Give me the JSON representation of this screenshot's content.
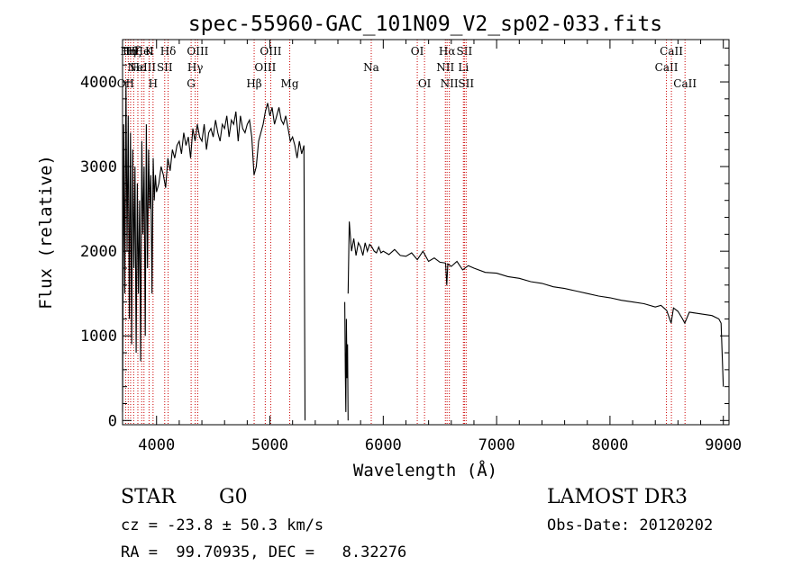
{
  "chart_data": {
    "type": "line",
    "title": "spec-55960-GAC_101N09_V2_sp02-033.fits",
    "xlabel": "Wavelength (Å)",
    "ylabel": "Flux (relative)",
    "xlim": [
      3700,
      9050
    ],
    "ylim": [
      -50,
      4500
    ],
    "xticks": [
      4000,
      5000,
      6000,
      7000,
      8000,
      9000
    ],
    "yticks": [
      0,
      1000,
      2000,
      3000,
      4000
    ],
    "series": [
      {
        "name": "flux",
        "color": "#000000",
        "segments": [
          {
            "x": [
              3700,
              3710,
              3720,
              3730,
              3740,
              3750,
              3760,
              3770,
              3780,
              3790,
              3800,
              3810,
              3820,
              3830,
              3840,
              3850,
              3860,
              3870,
              3880,
              3890,
              3900,
              3910,
              3920,
              3930,
              3940,
              3950,
              3960,
              3970,
              3980,
              3990,
              4000,
              4020,
              4040,
              4060,
              4080,
              4100,
              4120,
              4140,
              4160,
              4180,
              4200,
              4220,
              4240,
              4260,
              4280,
              4300,
              4320,
              4340,
              4360,
              4380,
              4400,
              4420,
              4440,
              4460,
              4480,
              4500,
              4520,
              4540,
              4560,
              4580,
              4600,
              4620,
              4640,
              4660,
              4680,
              4700,
              4720,
              4740,
              4760,
              4780,
              4800,
              4820,
              4840,
              4860,
              4880,
              4900,
              4920,
              4940,
              4960,
              4980,
              5000,
              5020,
              5040,
              5060,
              5080,
              5100,
              5120,
              5140,
              5160,
              5180,
              5200,
              5220,
              5240,
              5260,
              5280,
              5300,
              5310
            ],
            "y": [
              100,
              3500,
              1500,
              4000,
              2000,
              3600,
              1200,
              3400,
              900,
              3200,
              1800,
              3000,
              800,
              2800,
              1500,
              2600,
              700,
              3300,
              2200,
              3000,
              1000,
              3500,
              1800,
              3200,
              2500,
              2900,
              1500,
              3100,
              2600,
              2900,
              2700,
              2800,
              3000,
              2900,
              2750,
              3100,
              2950,
              3200,
              3100,
              3250,
              3300,
              3150,
              3400,
              3250,
              3350,
              3100,
              3450,
              3300,
              3500,
              3350,
              3300,
              3500,
              3200,
              3400,
              3450,
              3350,
              3550,
              3400,
              3300,
              3500,
              3450,
              3600,
              3350,
              3550,
              3500,
              3650,
              3300,
              3600,
              3450,
              3400,
              3500,
              3550,
              3350,
              2900,
              3000,
              3300,
              3400,
              3500,
              3650,
              3750,
              3600,
              3700,
              3500,
              3600,
              3700,
              3550,
              3500,
              3600,
              3450,
              3300,
              3350,
              3250,
              3100,
              3300,
              3150,
              3250,
              0
            ]
          },
          {
            "x": [
              5660,
              5665,
              5670,
              5675,
              5680,
              5685,
              5690
            ],
            "y": [
              1400,
              600,
              100,
              1200,
              500,
              900,
              0
            ]
          },
          {
            "x": [
              5690,
              5700,
              5720,
              5740,
              5760,
              5780,
              5800,
              5820,
              5840,
              5860,
              5880,
              5900,
              5920,
              5940,
              5960,
              5980,
              6000,
              6050,
              6100,
              6150,
              6200,
              6250,
              6300,
              6350,
              6400,
              6450,
              6500,
              6550,
              6560,
              6570,
              6600,
              6650,
              6700,
              6750,
              6800,
              6900,
              7000,
              7100,
              7200,
              7300,
              7400,
              7500,
              7600,
              7700,
              7800,
              7900,
              8000,
              8100,
              8200,
              8300,
              8400,
              8450,
              8500,
              8540,
              8560,
              8600,
              8640,
              8660,
              8700,
              8800,
              8900,
              8960,
              8980,
              9000
            ],
            "y": [
              1500,
              2350,
              2000,
              2150,
              1950,
              2100,
              2050,
              1950,
              2100,
              2000,
              2080,
              2050,
              2000,
              1980,
              2050,
              1980,
              2000,
              1960,
              2020,
              1950,
              1940,
              1980,
              1900,
              2000,
              1880,
              1920,
              1870,
              1860,
              1600,
              1850,
              1820,
              1880,
              1780,
              1830,
              1800,
              1750,
              1740,
              1700,
              1680,
              1640,
              1620,
              1580,
              1560,
              1530,
              1500,
              1470,
              1450,
              1420,
              1400,
              1380,
              1340,
              1360,
              1300,
              1150,
              1330,
              1290,
              1200,
              1150,
              1280,
              1260,
              1240,
              1200,
              1150,
              400
            ]
          }
        ]
      }
    ],
    "lines": [
      {
        "wl": 3727,
        "label": "OII",
        "row": 2
      },
      {
        "wl": 3750,
        "label": "Hη",
        "row": 0
      },
      {
        "wl": 3771,
        "label": "Hθ",
        "row": 0
      },
      {
        "wl": 3798,
        "label": "Hζ",
        "row": 0
      },
      {
        "wl": 3835,
        "label": "Hε",
        "row": 1
      },
      {
        "wl": 3869,
        "label": "NeIII",
        "row": 1
      },
      {
        "wl": 3889,
        "label": "HeI",
        "row": 0
      },
      {
        "wl": 3934,
        "label": "K",
        "row": 0
      },
      {
        "wl": 3969,
        "label": "H",
        "row": 2
      },
      {
        "wl": 4072,
        "label": "SII",
        "row": 1
      },
      {
        "wl": 4102,
        "label": "Hδ",
        "row": 0
      },
      {
        "wl": 4305,
        "label": "G",
        "row": 2
      },
      {
        "wl": 4341,
        "label": "Hγ",
        "row": 1
      },
      {
        "wl": 4363,
        "label": "OIII",
        "row": 0
      },
      {
        "wl": 4861,
        "label": "Hβ",
        "row": 2
      },
      {
        "wl": 4959,
        "label": "OIII",
        "row": 1
      },
      {
        "wl": 5007,
        "label": "OIII",
        "row": 0
      },
      {
        "wl": 5175,
        "label": "Mg",
        "row": 2
      },
      {
        "wl": 5894,
        "label": "Na",
        "row": 1
      },
      {
        "wl": 6300,
        "label": "OI",
        "row": 0
      },
      {
        "wl": 6364,
        "label": "OI",
        "row": 2
      },
      {
        "wl": 6548,
        "label": "NII",
        "row": 1
      },
      {
        "wl": 6563,
        "label": "Hα",
        "row": 0
      },
      {
        "wl": 6583,
        "label": "NII",
        "row": 2
      },
      {
        "wl": 6707,
        "label": "Li",
        "row": 1
      },
      {
        "wl": 6716,
        "label": "SII",
        "row": 0
      },
      {
        "wl": 6731,
        "label": "SII",
        "row": 2
      },
      {
        "wl": 8498,
        "label": "CaII",
        "row": 1
      },
      {
        "wl": 8542,
        "label": "CaII",
        "row": 0
      },
      {
        "wl": 8662,
        "label": "CaII",
        "row": 2
      }
    ],
    "line_color": "#cc0000"
  },
  "info": {
    "object_class": "STAR",
    "subclass": "G0",
    "survey": "LAMOST DR3",
    "redshift": "cz = -23.8 ± 50.3 km/s",
    "obs_date": "Obs-Date: 20120202",
    "coords": "RA =  99.70935, DEC =   8.32276"
  }
}
